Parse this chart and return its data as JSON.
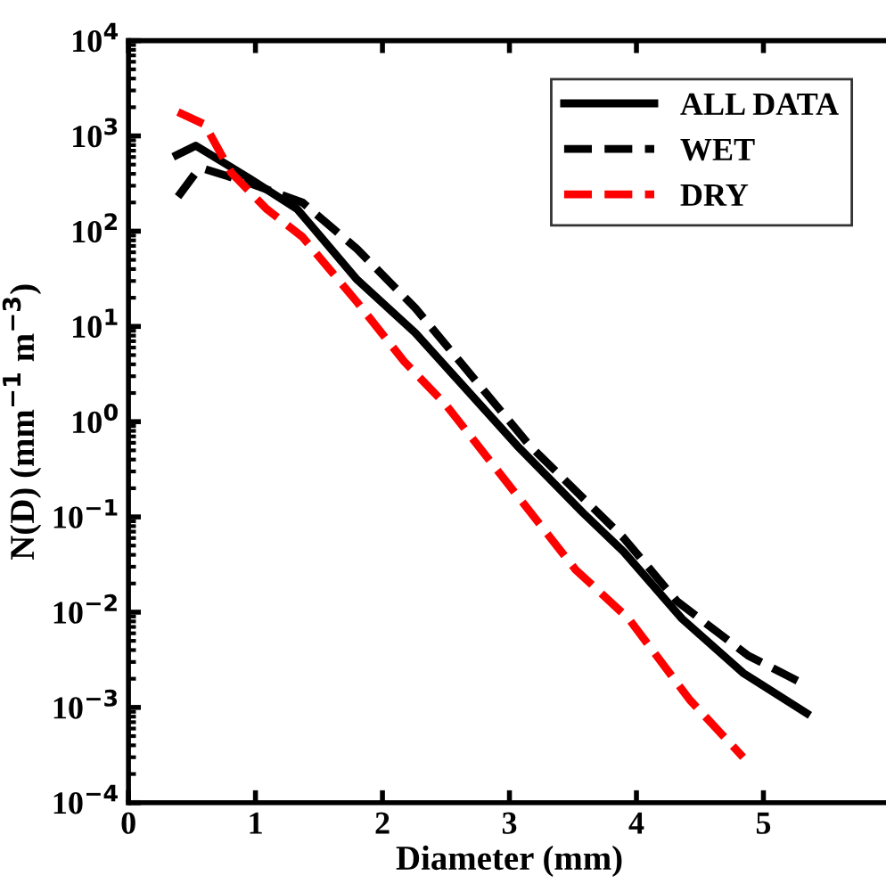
{
  "chart_data": {
    "type": "line",
    "xlabel": "Diameter (mm)",
    "ylabel": "N(D) (mm$^{−1}$ m$^{−3}$)",
    "log": "y",
    "xlim": [
      0,
      6
    ],
    "xticks": [
      0,
      1,
      2,
      3,
      4,
      5
    ],
    "ylim": [
      0.0001,
      10000
    ],
    "yticks": [
      {
        "value": 0.0001,
        "label": "10$^{−4}$"
      },
      {
        "value": 0.001,
        "label": "10$^{−3}$"
      },
      {
        "value": 0.01,
        "label": "10$^{−2}$"
      },
      {
        "value": 0.1,
        "label": "10$^{−1}$"
      },
      {
        "value": 1,
        "label": "10$^{0}$"
      },
      {
        "value": 10,
        "label": "10$^{1}$"
      },
      {
        "value": 100,
        "label": "10$^{2}$"
      },
      {
        "value": 1000,
        "label": "10$^{3}$"
      },
      {
        "value": 10000,
        "label": "10$^{4}$"
      }
    ],
    "grid": false,
    "legend": "top right",
    "marker": "none",
    "series": [
      {
        "name": "ALL DATA",
        "color": "#000000",
        "line_style": "solid",
        "x": [
          0.38,
          0.53,
          0.95,
          1.33,
          1.8,
          2.26,
          3.06,
          3.58,
          3.9,
          4.36,
          4.84,
          5.34
        ],
        "values": [
          630,
          790,
          360,
          170,
          31,
          8.5,
          0.56,
          0.11,
          0.043,
          0.0085,
          0.0023,
          0.00087
        ]
      },
      {
        "name": "WET",
        "color": "#000000",
        "line_style": "dashed",
        "x": [
          0.39,
          0.53,
          0.6,
          0.95,
          1.37,
          1.8,
          2.26,
          3.16,
          3.9,
          4.32,
          4.88,
          5.34
        ],
        "values": [
          230,
          410,
          450,
          320,
          200,
          65,
          15.5,
          0.56,
          0.06,
          0.013,
          0.0035,
          0.0017
        ]
      },
      {
        "name": "DRY",
        "color": "#ff0000",
        "line_style": "dashed",
        "x": [
          0.39,
          0.6,
          0.81,
          1.09,
          1.37,
          1.8,
          2.17,
          2.5,
          3.52,
          3.94,
          4.42,
          4.84
        ],
        "values": [
          1780,
          1320,
          410,
          170,
          87,
          18,
          4.3,
          1.5,
          0.028,
          0.0085,
          0.0012,
          0.0003
        ]
      }
    ]
  }
}
